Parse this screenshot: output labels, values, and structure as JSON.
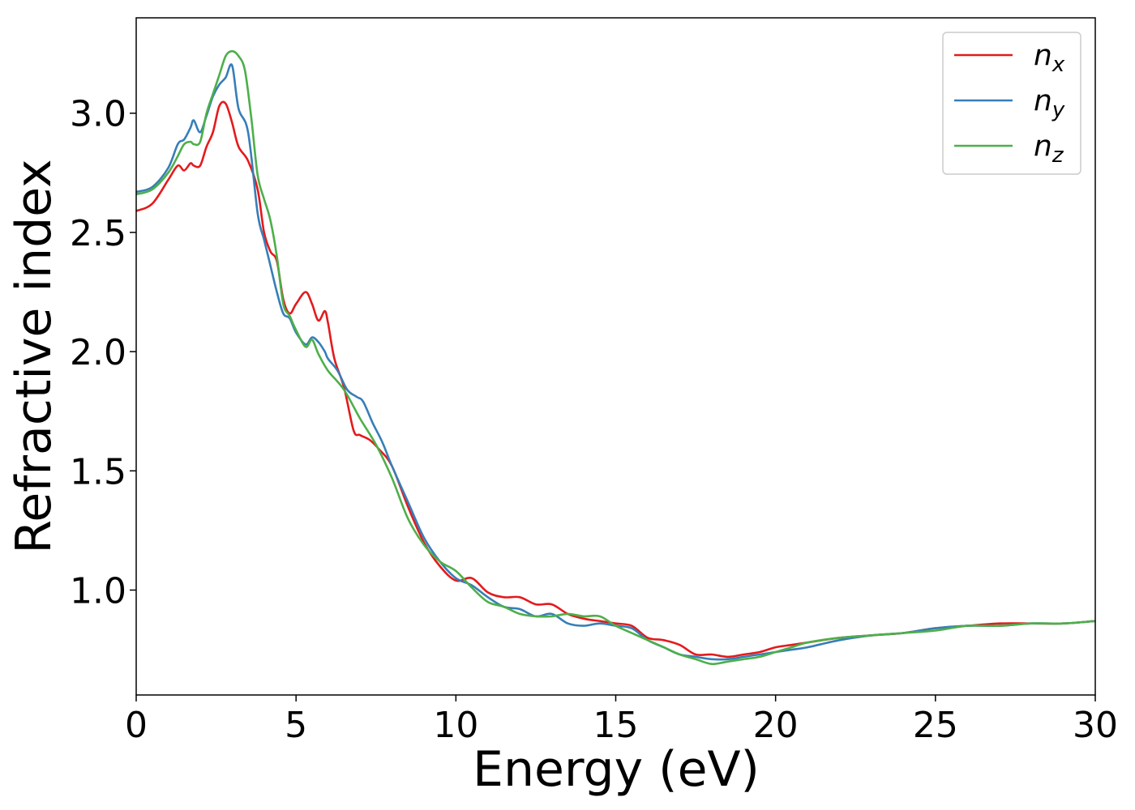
{
  "chart_data": {
    "type": "line",
    "title": "",
    "xlabel": "Energy (eV)",
    "ylabel": "Refractive index",
    "xlim": [
      0,
      30
    ],
    "ylim": [
      0.56,
      3.4
    ],
    "xticks": [
      0,
      5,
      10,
      15,
      20,
      25,
      30
    ],
    "yticks": [
      1.0,
      1.5,
      2.0,
      2.5,
      3.0
    ],
    "grid": false,
    "legend_position": "top-right",
    "series": [
      {
        "name": "n",
        "subscript": "x",
        "color": "#e41a1c",
        "x": [
          0,
          0.5,
          1.0,
          1.3,
          1.5,
          1.7,
          1.8,
          2.0,
          2.2,
          2.4,
          2.6,
          2.8,
          3.0,
          3.2,
          3.5,
          3.8,
          4.0,
          4.2,
          4.4,
          4.6,
          4.8,
          5.0,
          5.3,
          5.5,
          5.7,
          5.9,
          6.0,
          6.2,
          6.5,
          6.8,
          7.0,
          7.3,
          7.6,
          8.0,
          8.5,
          9.0,
          9.5,
          10.0,
          10.5,
          11.0,
          11.5,
          12.0,
          12.5,
          13.0,
          13.5,
          14.0,
          14.5,
          15.0,
          15.5,
          16.0,
          16.5,
          17.0,
          17.5,
          18.0,
          18.5,
          19.0,
          19.5,
          20.0,
          20.5,
          21.0,
          22.0,
          23.0,
          24.0,
          25.0,
          26.0,
          27.0,
          28.0,
          29.0,
          30.0
        ],
        "y": [
          2.59,
          2.62,
          2.72,
          2.78,
          2.76,
          2.79,
          2.78,
          2.78,
          2.86,
          2.92,
          3.03,
          3.04,
          2.96,
          2.86,
          2.8,
          2.68,
          2.5,
          2.42,
          2.38,
          2.22,
          2.16,
          2.2,
          2.25,
          2.2,
          2.13,
          2.17,
          2.12,
          1.97,
          1.85,
          1.67,
          1.65,
          1.63,
          1.59,
          1.52,
          1.35,
          1.2,
          1.1,
          1.04,
          1.05,
          0.99,
          0.97,
          0.97,
          0.94,
          0.94,
          0.9,
          0.88,
          0.87,
          0.86,
          0.85,
          0.8,
          0.79,
          0.77,
          0.73,
          0.73,
          0.72,
          0.73,
          0.74,
          0.76,
          0.77,
          0.78,
          0.8,
          0.81,
          0.82,
          0.84,
          0.85,
          0.86,
          0.86,
          0.86,
          0.87
        ]
      },
      {
        "name": "n",
        "subscript": "y",
        "color": "#377eb8",
        "x": [
          0,
          0.5,
          1.0,
          1.3,
          1.5,
          1.7,
          1.8,
          2.0,
          2.2,
          2.4,
          2.6,
          2.8,
          3.0,
          3.2,
          3.5,
          3.8,
          4.0,
          4.2,
          4.4,
          4.6,
          4.8,
          5.0,
          5.3,
          5.5,
          5.7,
          5.9,
          6.0,
          6.3,
          6.6,
          6.9,
          7.1,
          7.4,
          7.7,
          8.0,
          8.5,
          9.0,
          9.5,
          10.0,
          10.5,
          11.0,
          11.5,
          12.0,
          12.5,
          13.0,
          13.5,
          14.0,
          14.5,
          15.0,
          15.5,
          16.0,
          16.5,
          17.0,
          17.5,
          18.0,
          18.5,
          19.0,
          19.5,
          20.0,
          20.5,
          21.0,
          22.0,
          23.0,
          24.0,
          25.0,
          26.0,
          27.0,
          28.0,
          29.0,
          30.0
        ],
        "y": [
          2.67,
          2.69,
          2.77,
          2.87,
          2.89,
          2.94,
          2.97,
          2.92,
          2.99,
          3.07,
          3.12,
          3.15,
          3.2,
          3.02,
          2.92,
          2.58,
          2.47,
          2.36,
          2.25,
          2.16,
          2.14,
          2.08,
          2.03,
          2.06,
          2.04,
          2.0,
          1.97,
          1.92,
          1.84,
          1.81,
          1.79,
          1.7,
          1.62,
          1.52,
          1.37,
          1.22,
          1.12,
          1.05,
          1.02,
          0.97,
          0.93,
          0.92,
          0.89,
          0.9,
          0.86,
          0.85,
          0.86,
          0.85,
          0.84,
          0.79,
          0.76,
          0.73,
          0.72,
          0.71,
          0.71,
          0.72,
          0.73,
          0.74,
          0.75,
          0.76,
          0.79,
          0.81,
          0.82,
          0.84,
          0.85,
          0.85,
          0.86,
          0.86,
          0.87
        ]
      },
      {
        "name": "n",
        "subscript": "z",
        "color": "#4daf4a",
        "x": [
          0,
          0.5,
          1.0,
          1.3,
          1.5,
          1.7,
          1.8,
          2.0,
          2.2,
          2.4,
          2.6,
          2.8,
          3.0,
          3.2,
          3.4,
          3.6,
          3.8,
          4.0,
          4.2,
          4.4,
          4.6,
          4.8,
          5.0,
          5.3,
          5.5,
          5.7,
          6.0,
          6.5,
          7.0,
          7.5,
          8.0,
          8.5,
          9.0,
          9.5,
          10.0,
          10.5,
          11.0,
          11.5,
          12.0,
          12.5,
          13.0,
          13.5,
          14.0,
          14.5,
          15.0,
          15.5,
          16.0,
          16.5,
          17.0,
          17.5,
          18.0,
          18.5,
          19.0,
          19.5,
          20.0,
          20.5,
          21.0,
          22.0,
          23.0,
          24.0,
          25.0,
          26.0,
          27.0,
          28.0,
          29.0,
          30.0
        ],
        "y": [
          2.66,
          2.68,
          2.75,
          2.82,
          2.87,
          2.88,
          2.87,
          2.88,
          3.0,
          3.08,
          3.16,
          3.24,
          3.26,
          3.24,
          3.18,
          2.98,
          2.74,
          2.64,
          2.55,
          2.4,
          2.2,
          2.15,
          2.09,
          2.02,
          2.05,
          1.99,
          1.92,
          1.84,
          1.72,
          1.61,
          1.47,
          1.3,
          1.19,
          1.12,
          1.08,
          1.01,
          0.95,
          0.93,
          0.9,
          0.89,
          0.89,
          0.9,
          0.89,
          0.89,
          0.85,
          0.82,
          0.79,
          0.76,
          0.73,
          0.71,
          0.69,
          0.7,
          0.71,
          0.72,
          0.74,
          0.76,
          0.78,
          0.8,
          0.81,
          0.82,
          0.83,
          0.85,
          0.85,
          0.86,
          0.86,
          0.87
        ]
      }
    ]
  }
}
